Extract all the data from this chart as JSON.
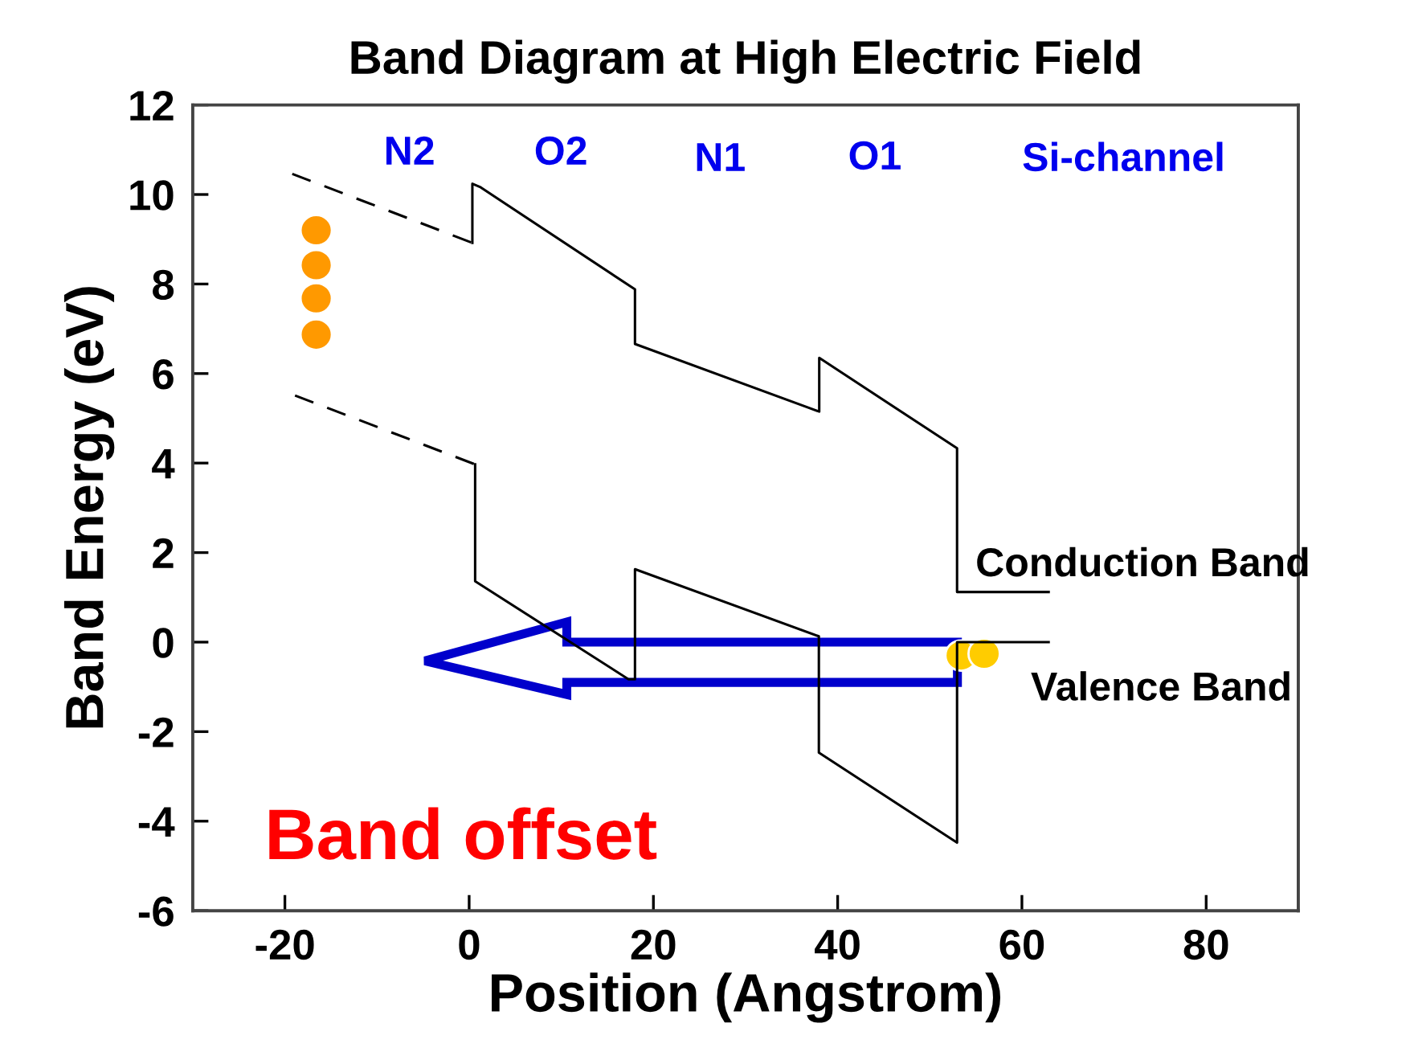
{
  "chart_data": {
    "type": "line",
    "title": "Band Diagram at High Electric Field",
    "xlabel": "Position (Angstrom)",
    "ylabel": "Band Energy (eV)",
    "series": [
      {
        "color": "#000000",
        "line_style": "dashed",
        "x": [
          -19.2,
          0.35
        ],
        "values": [
          10.46,
          8.92
        ]
      },
      {
        "color": "#000000",
        "line_style": "solid",
        "x": [
          0.35,
          0.35,
          1.17,
          18.0,
          18.0,
          38.0,
          38.0,
          52.96,
          52.96,
          62.9
        ],
        "values": [
          8.92,
          10.24,
          10.17,
          7.88,
          6.66,
          5.15,
          6.35,
          4.33,
          1.12,
          1.12
        ]
      },
      {
        "color": "#000000",
        "line_style": "dashed",
        "x": [
          -18.9,
          0.65
        ],
        "values": [
          5.51,
          3.97
        ]
      },
      {
        "color": "#000000",
        "line_style": "solid",
        "x": [
          0.65,
          0.65,
          17.3,
          18.0,
          18.0,
          37.96,
          37.96,
          52.96,
          52.96,
          62.9
        ],
        "values": [
          3.97,
          1.36,
          -0.83,
          -0.83,
          1.63,
          0.13,
          -2.47,
          -4.48,
          0,
          0
        ]
      }
    ],
    "xlim": [
      -30,
      90
    ],
    "xticks": [
      -20,
      0,
      20,
      40,
      60,
      80
    ],
    "ylim": [
      -6,
      12
    ],
    "yticks": [
      -6,
      -4,
      -2,
      0,
      2,
      4,
      6,
      8,
      10,
      12
    ],
    "grid": false,
    "legend": false,
    "marker": "none",
    "annotations": [
      "N2",
      "O2",
      "N1",
      "O1",
      "Si-channel",
      "Conduction Band",
      "Valence Band",
      "Band offset"
    ]
  }
}
